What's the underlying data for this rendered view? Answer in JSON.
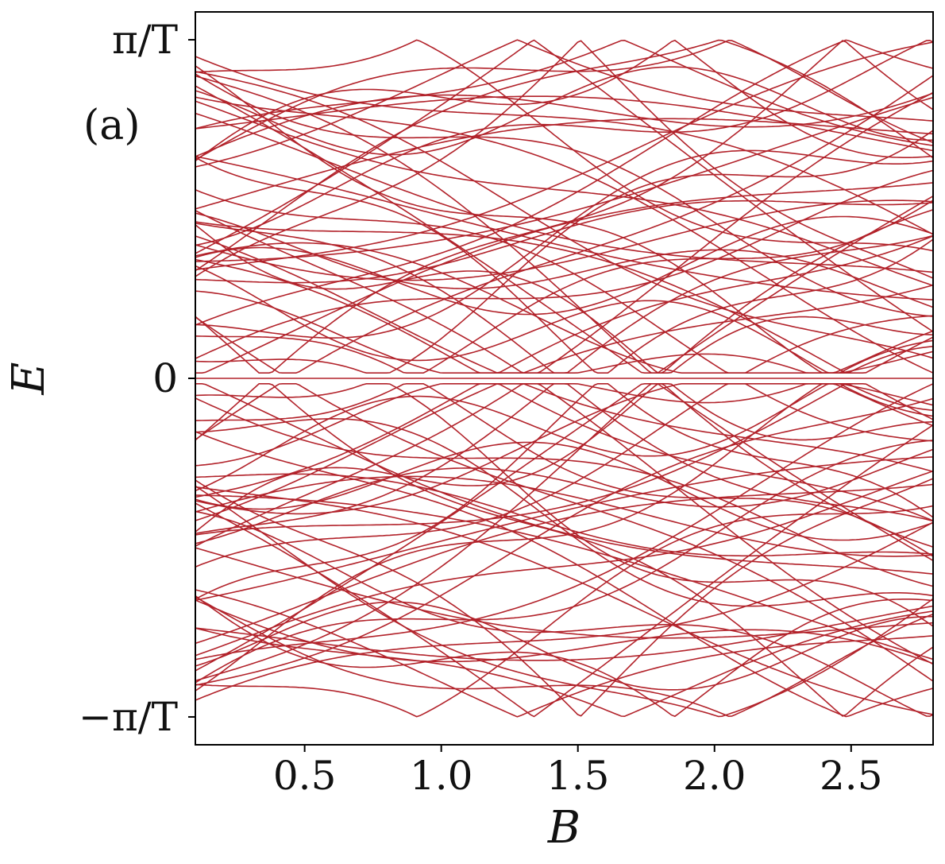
{
  "chart_data": {
    "type": "line",
    "title": "",
    "panel_label": "(a)",
    "xlabel": "B",
    "ylabel": "E",
    "xlim": [
      0.1,
      2.8
    ],
    "ylim": [
      -3.4,
      3.4
    ],
    "x_ticks": [
      0.5,
      1.0,
      1.5,
      2.0,
      2.5
    ],
    "x_tick_labels": [
      "0.5",
      "1.0",
      "1.5",
      "2.0",
      "2.5"
    ],
    "y_ticks": [
      -3.14159,
      0,
      3.14159
    ],
    "y_tick_labels": [
      "−π/T",
      "0",
      "π/T"
    ],
    "grid": false,
    "line_color": "#b2222a",
    "description_of_series": "quasienergy levels vs B; band of ~90 levels symmetric about E=0 plus a flat zero mode",
    "zero_mode": {
      "x": [
        0.1,
        2.8
      ],
      "y": [
        0,
        0
      ]
    }
  }
}
